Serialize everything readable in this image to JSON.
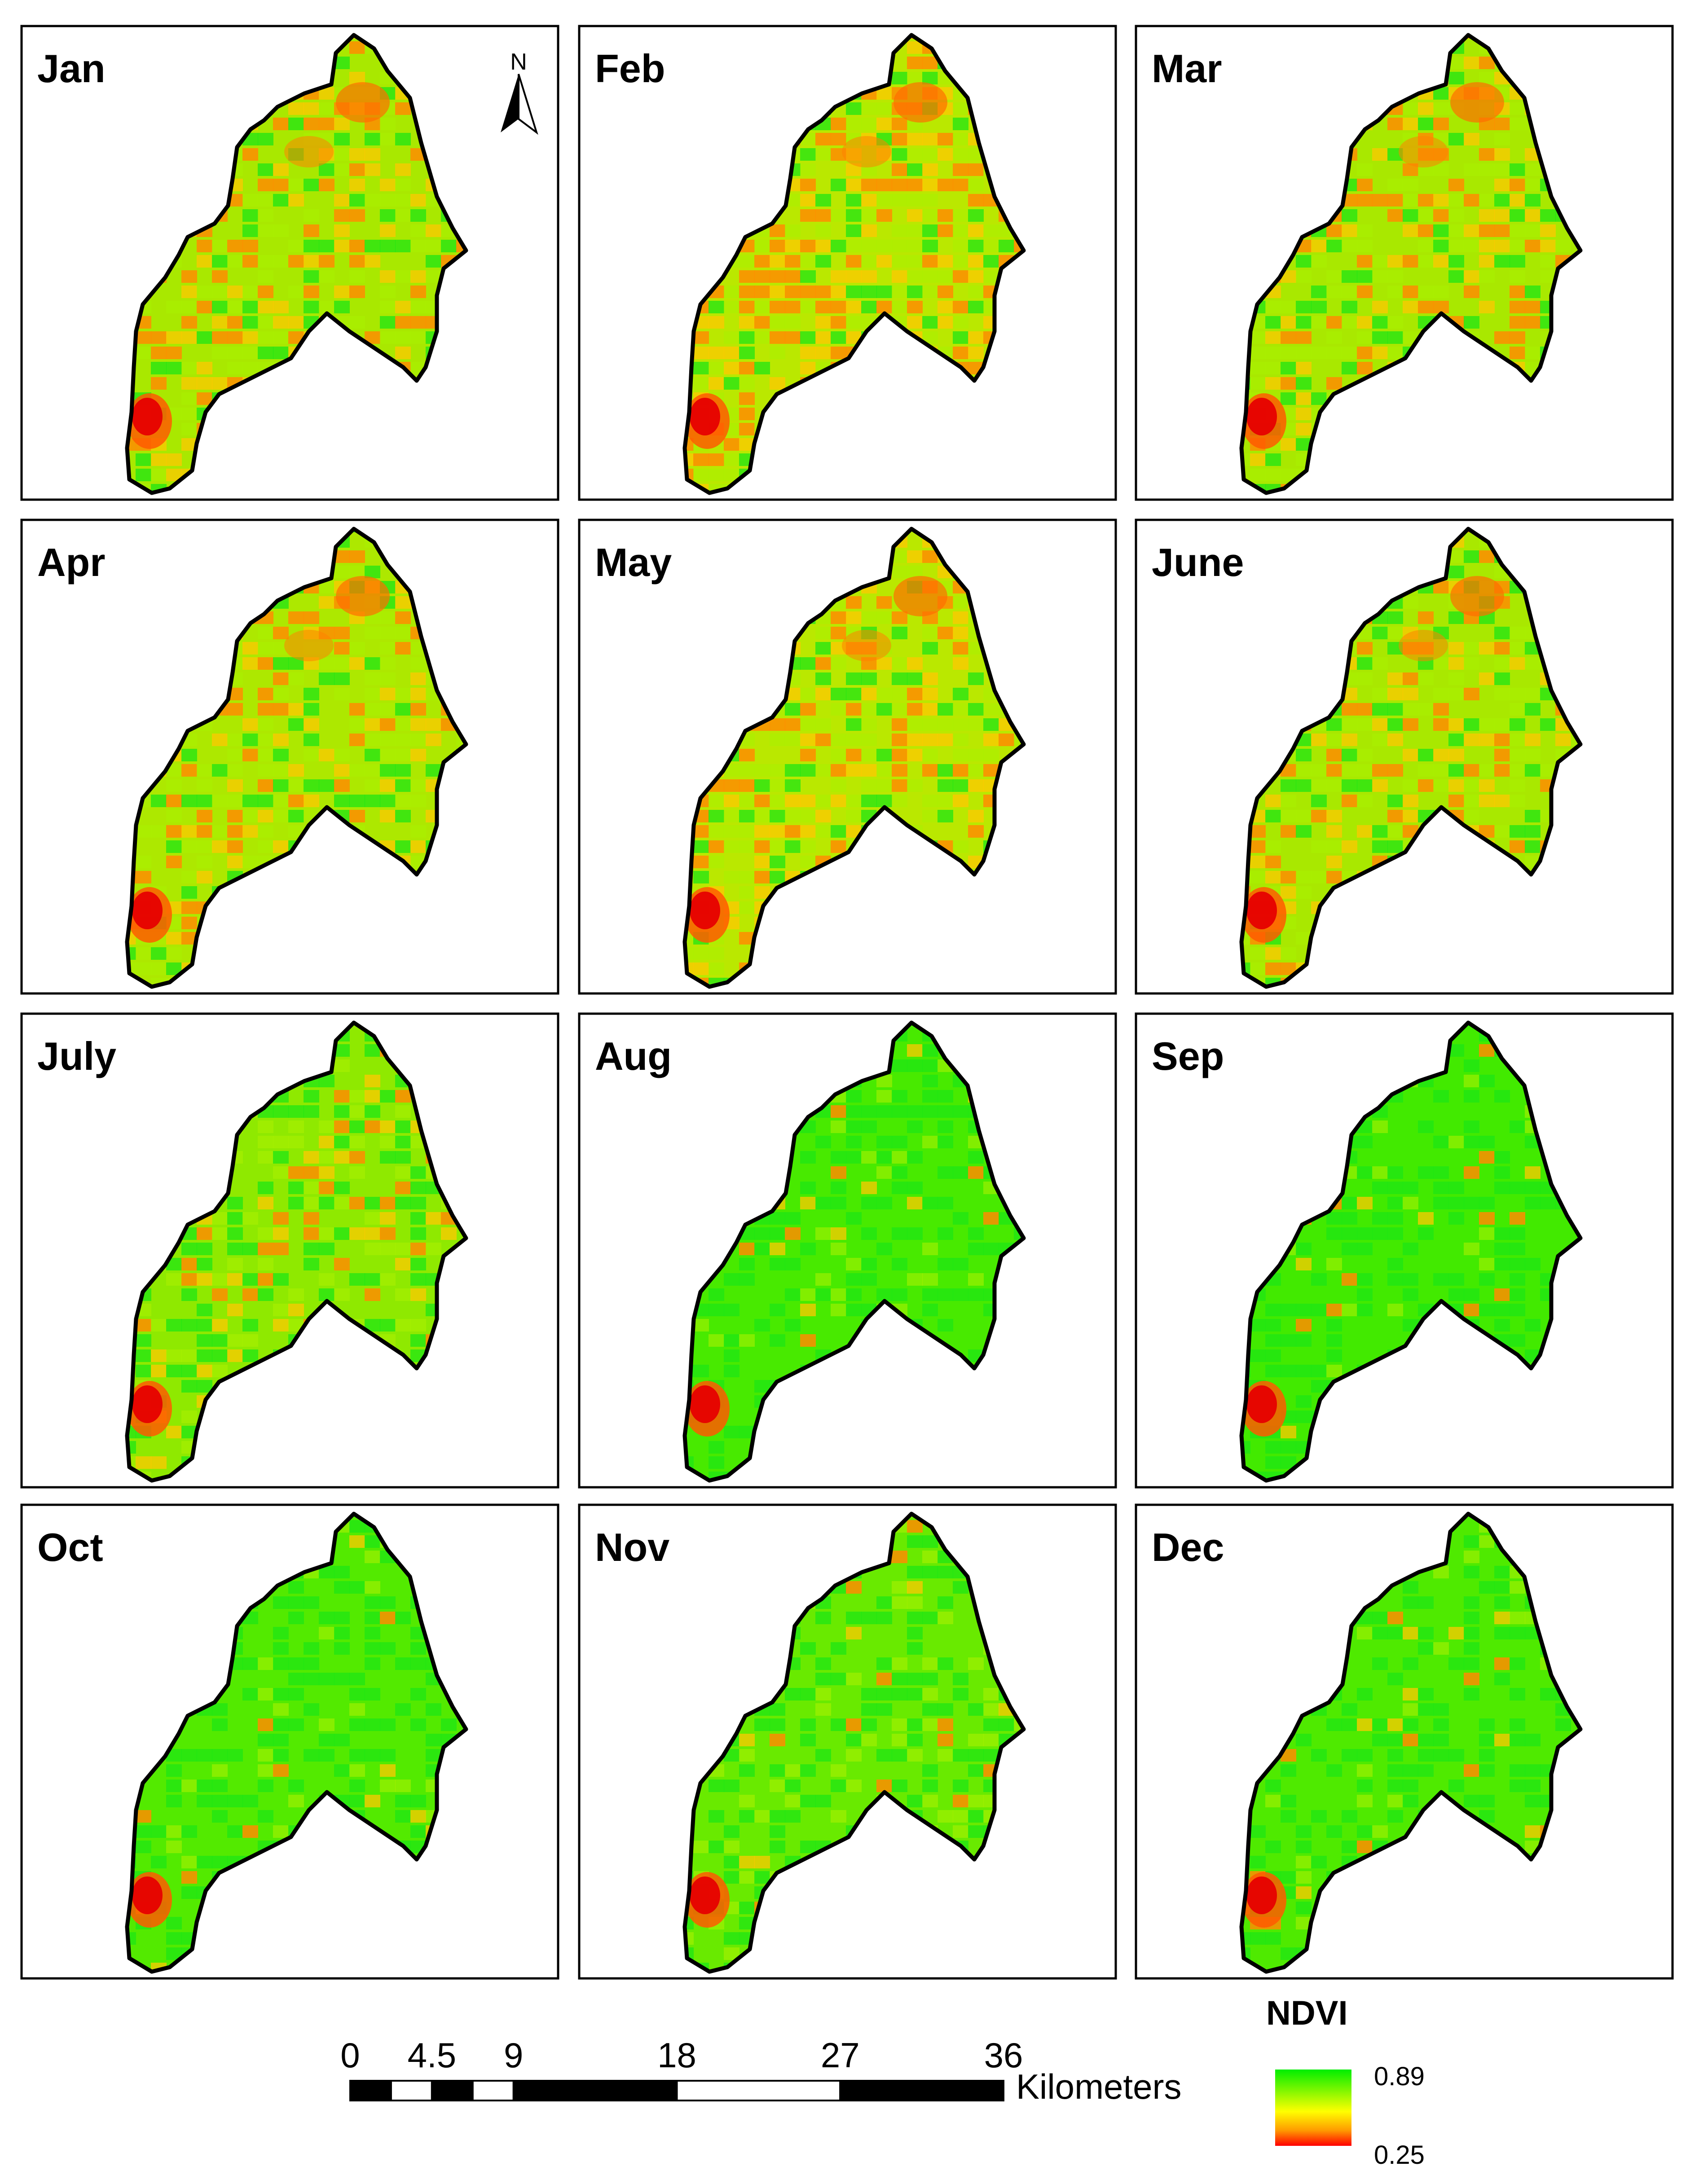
{
  "figure": {
    "panels": [
      {
        "label": "Jan",
        "greenness": 0.4,
        "redness": 0.55
      },
      {
        "label": "Feb",
        "greenness": 0.32,
        "redness": 0.7
      },
      {
        "label": "Mar",
        "greenness": 0.4,
        "redness": 0.55
      },
      {
        "label": "Apr",
        "greenness": 0.38,
        "redness": 0.55
      },
      {
        "label": "May",
        "greenness": 0.32,
        "redness": 0.6
      },
      {
        "label": "June",
        "greenness": 0.4,
        "redness": 0.55
      },
      {
        "label": "July",
        "greenness": 0.52,
        "redness": 0.3
      },
      {
        "label": "Aug",
        "greenness": 0.85,
        "redness": 0.1
      },
      {
        "label": "Sep",
        "greenness": 0.88,
        "redness": 0.08
      },
      {
        "label": "Oct",
        "greenness": 0.8,
        "redness": 0.1
      },
      {
        "label": "Nov",
        "greenness": 0.7,
        "redness": 0.15
      },
      {
        "label": "Dec",
        "greenness": 0.82,
        "redness": 0.1
      }
    ],
    "north_arrow": {
      "label": "N"
    },
    "scale_bar": {
      "ticks": [
        "0",
        "4.5",
        "9",
        "18",
        "27",
        "36"
      ],
      "unit": "Kilometers"
    },
    "legend": {
      "title": "NDVI",
      "max_label": "0.89",
      "min_label": "0.25",
      "colors": {
        "high": "#00ee00",
        "mid": "#ffff00",
        "low": "#ff0000"
      }
    }
  }
}
